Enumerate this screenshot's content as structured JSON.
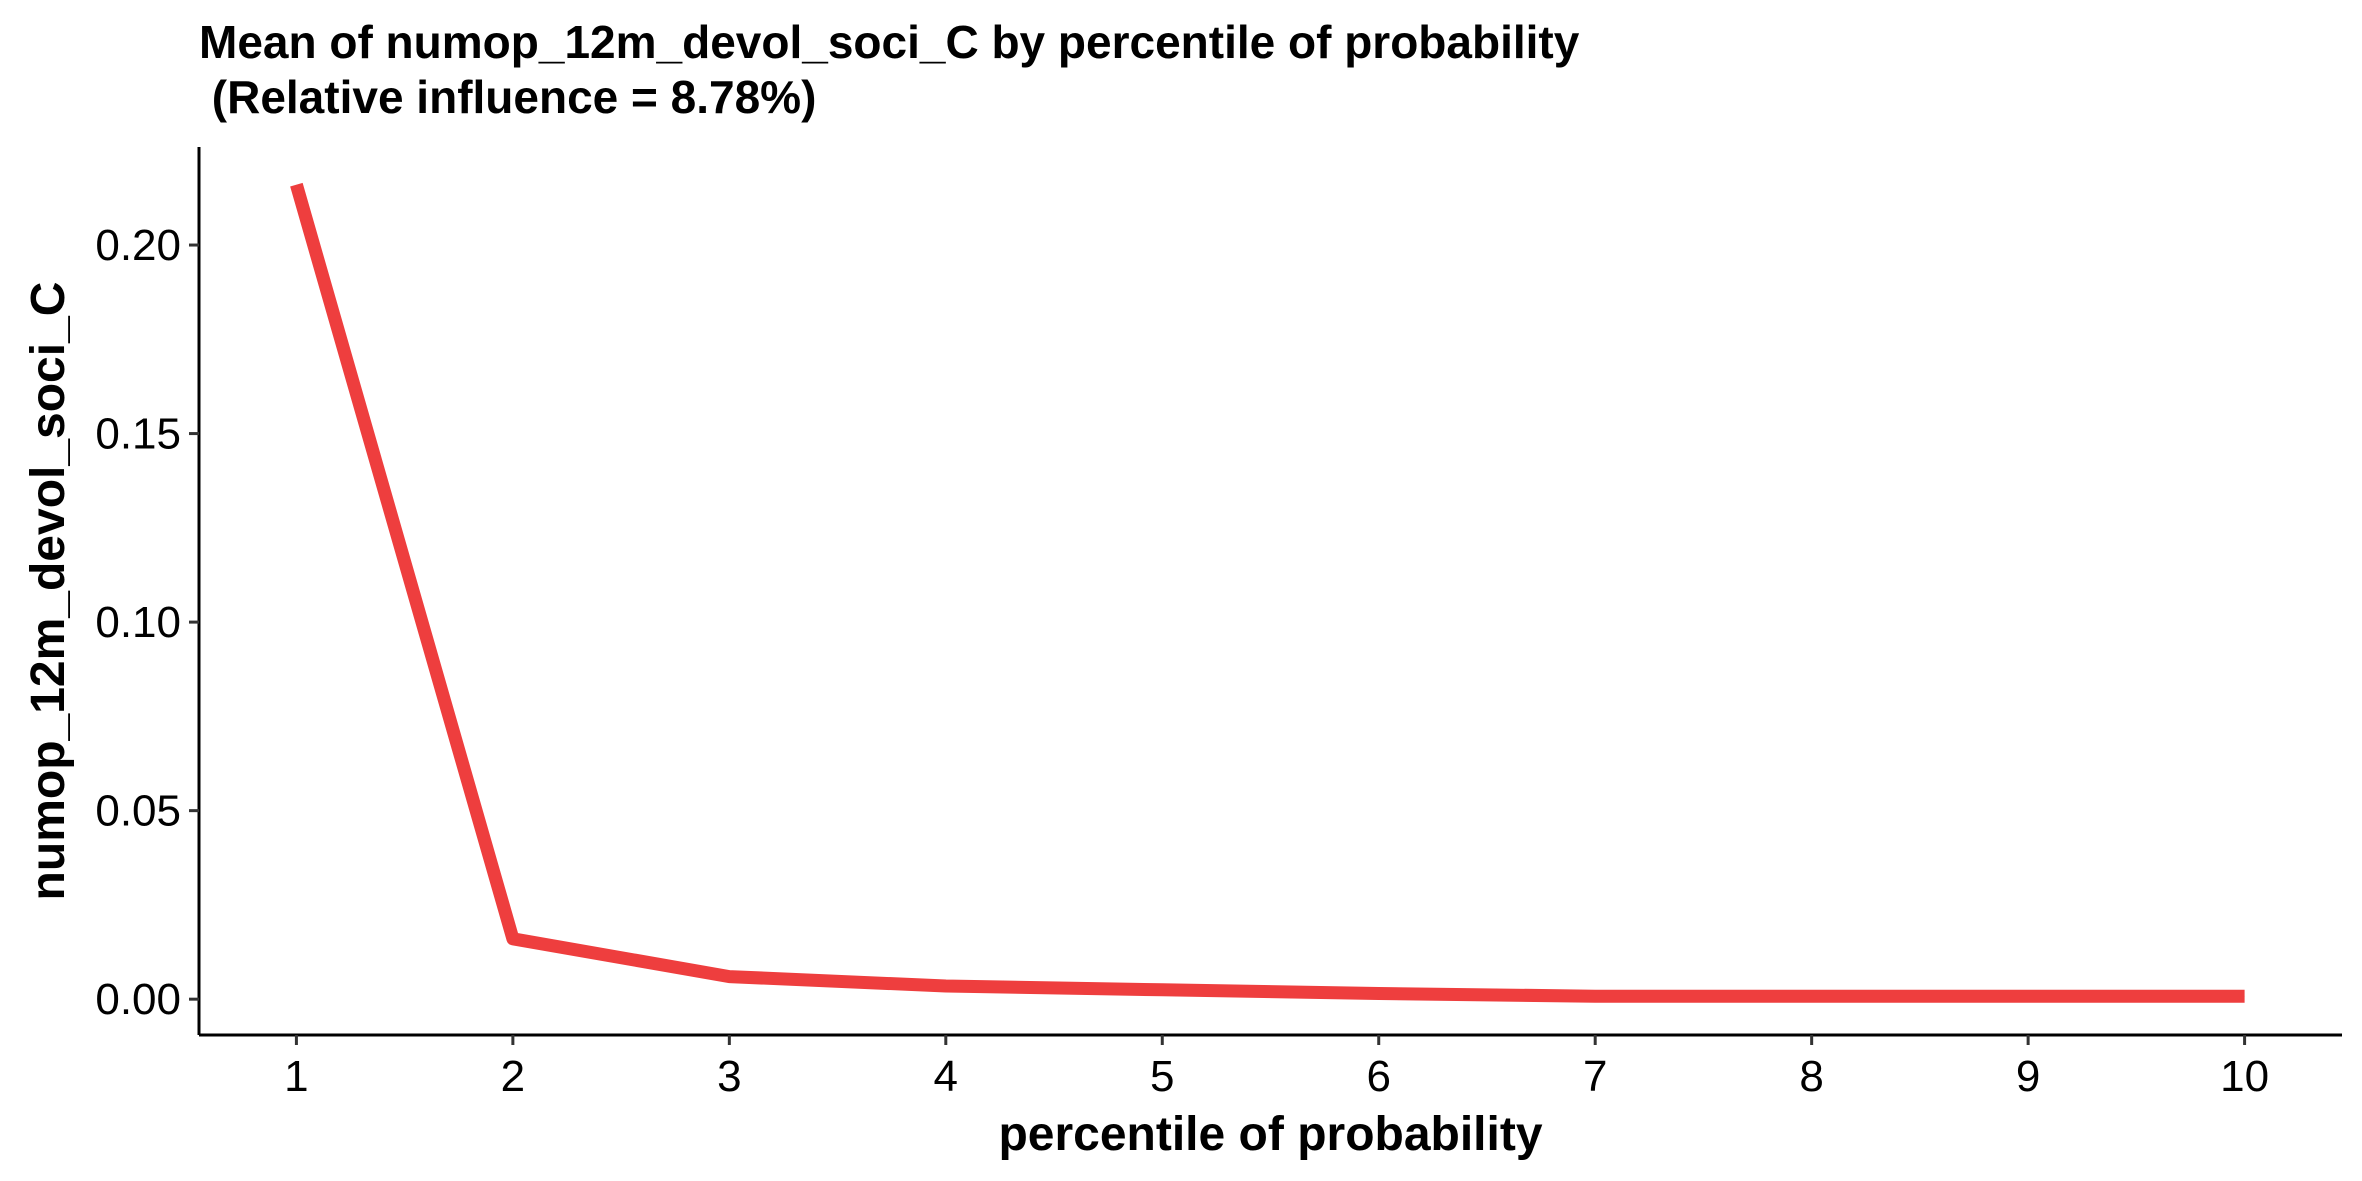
{
  "chart_data": {
    "type": "line",
    "title_lines": [
      "Mean of numop_12m_devol_soci_C by percentile of probability",
      " (Relative influence = 8.78%)"
    ],
    "xlabel": "percentile of probability",
    "ylabel": "numop_12m_devol_soci_C",
    "x": [
      1,
      2,
      3,
      4,
      5,
      6,
      7,
      8,
      9,
      10
    ],
    "x_tick_labels": [
      "1",
      "2",
      "3",
      "4",
      "5",
      "6",
      "7",
      "8",
      "9",
      "10"
    ],
    "y_ticks": [
      0.0,
      0.05,
      0.1,
      0.15,
      0.2
    ],
    "y_tick_labels": [
      "0.00",
      "0.05",
      "0.10",
      "0.15",
      "0.20"
    ],
    "xlim": [
      0.55,
      10.45
    ],
    "ylim": [
      -0.0095,
      0.226
    ],
    "series": [
      {
        "values": [
          0.216,
          0.016,
          0.006,
          0.0035,
          0.0025,
          0.0015,
          0.0008,
          0.0008,
          0.0008,
          0.0008
        ],
        "color": "#ee3e3e"
      }
    ],
    "grid": false,
    "legend": "none"
  }
}
